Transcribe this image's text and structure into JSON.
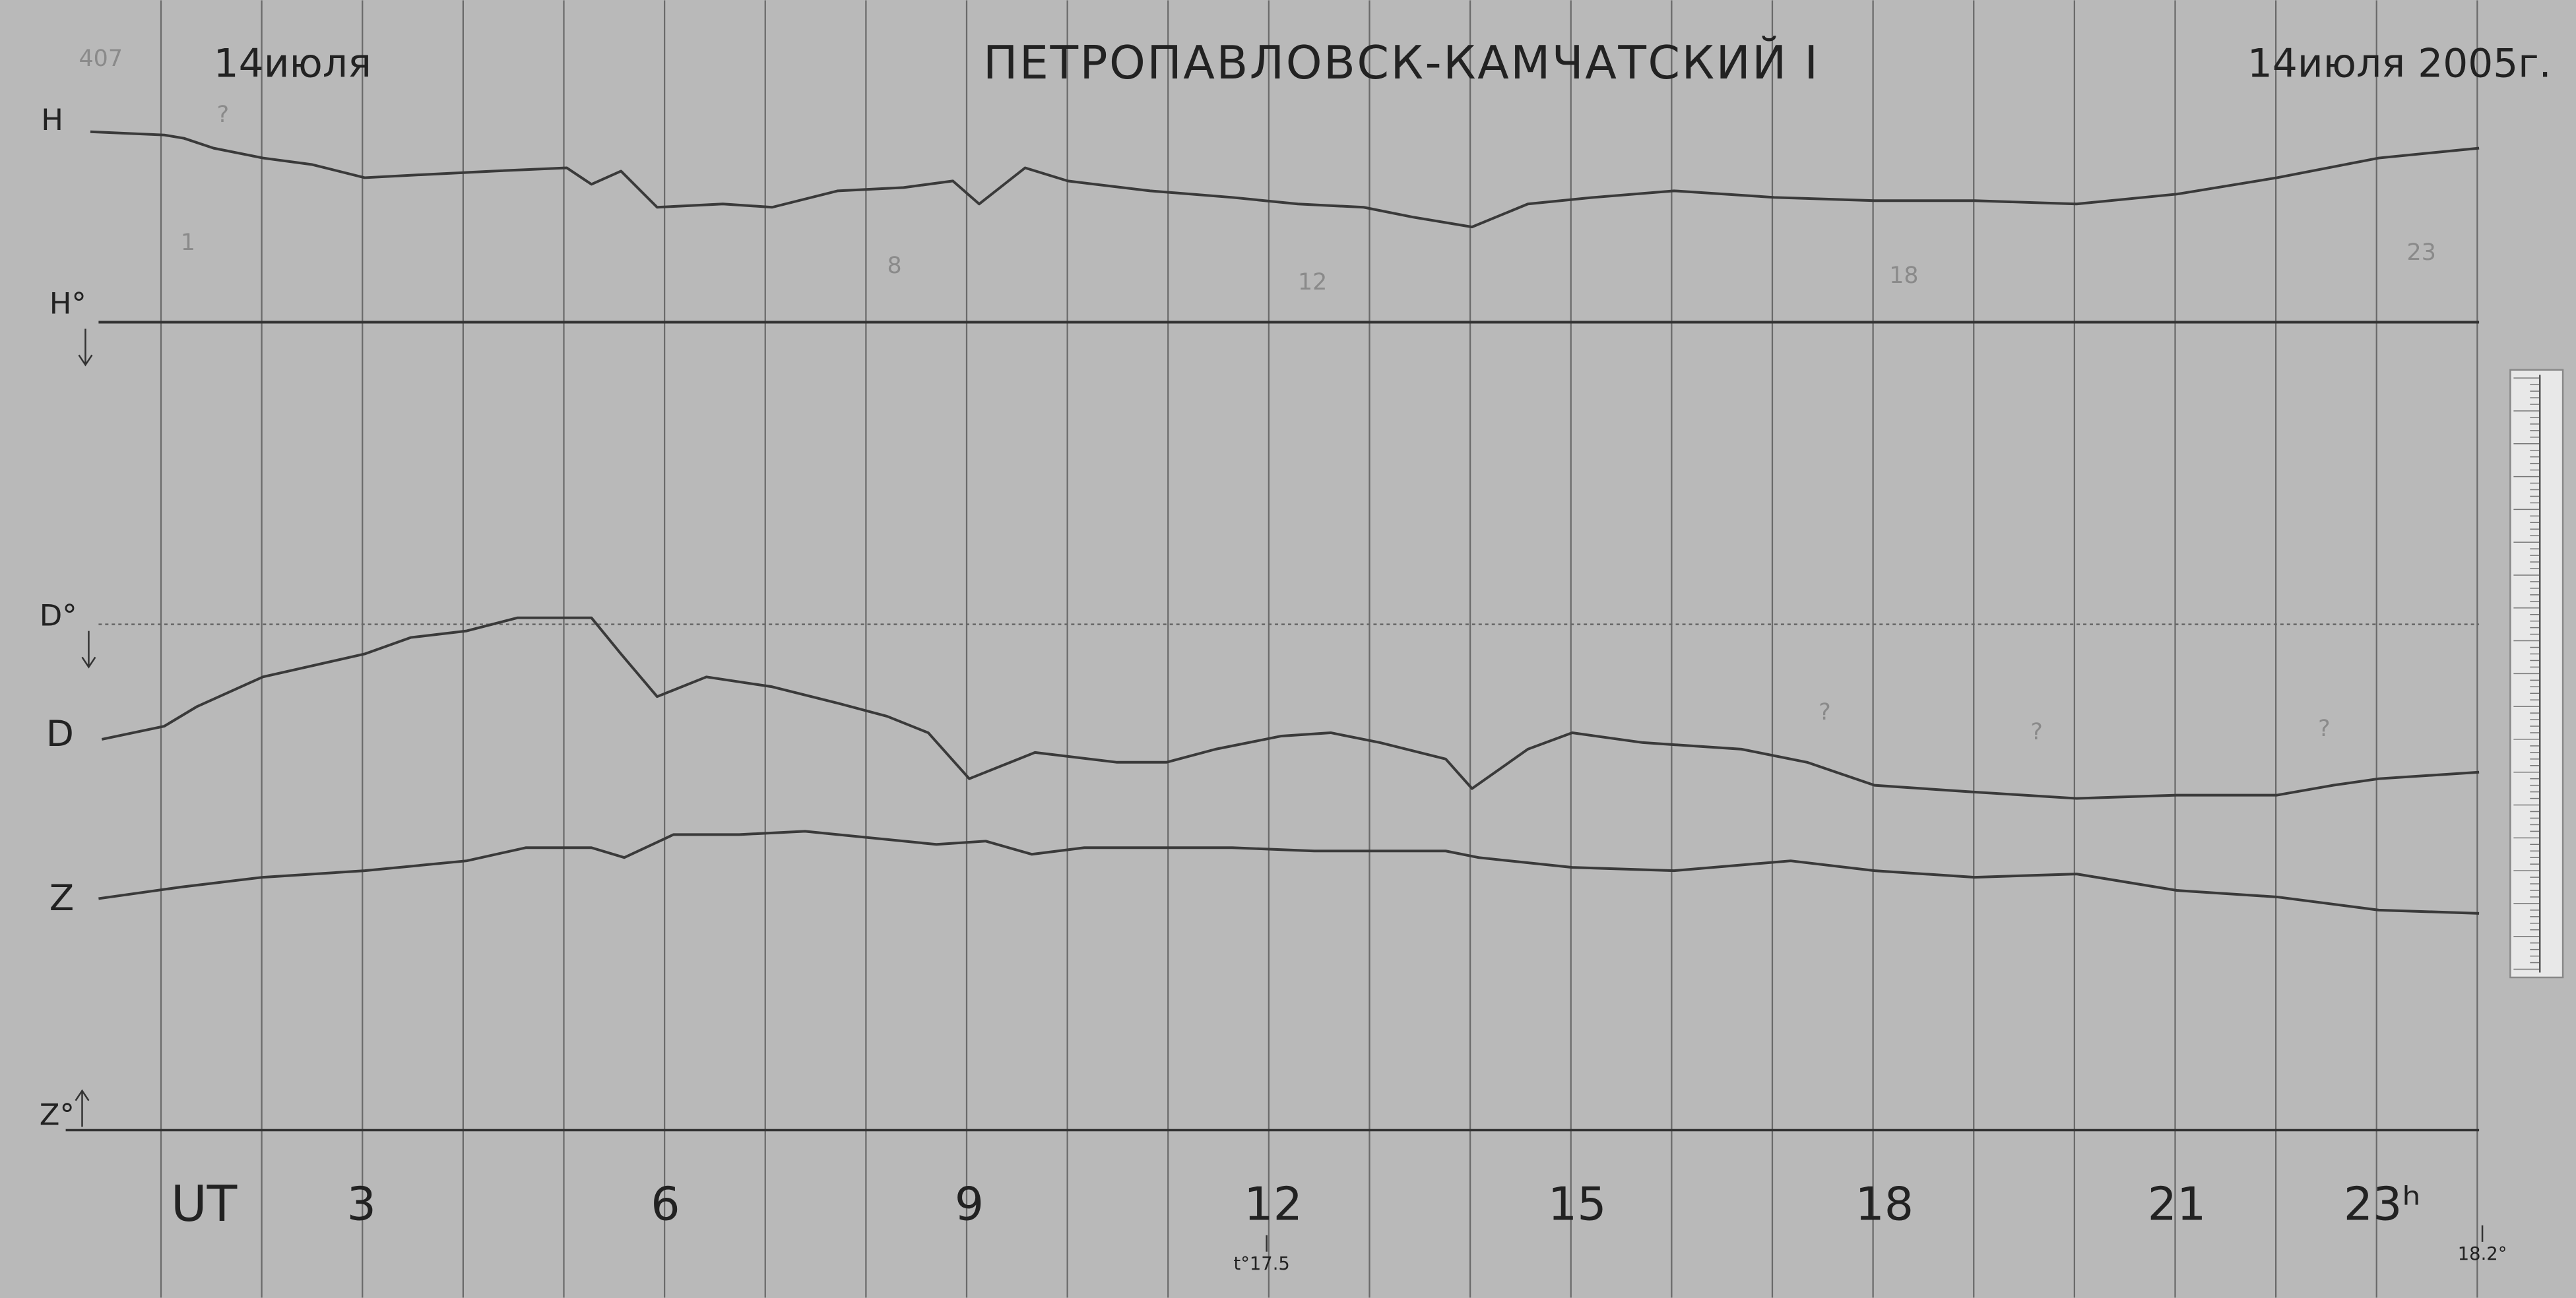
{
  "header": {
    "left_date": "14июля",
    "title": "ПЕТРОПАВЛОВСК-КАМЧАТСКИЙ I",
    "right_date": "14июля 2005г."
  },
  "trace_labels": {
    "h": "H",
    "h_base": "H°",
    "d_base": "D°",
    "d": "D",
    "z": "Z",
    "z_base": "Z°"
  },
  "time_axis": {
    "label": "UT",
    "hours": [
      "3",
      "6",
      "9",
      "12",
      "15",
      "18",
      "21",
      "23ʰ"
    ]
  },
  "temperatures": {
    "start": "t°17.5",
    "end": "18.2°"
  },
  "notes": {
    "corner": "407",
    "marks": [
      "?",
      "?",
      "?",
      "?"
    ],
    "pencil_hours": [
      "1",
      "8",
      "12",
      "18",
      "23"
    ]
  }
}
